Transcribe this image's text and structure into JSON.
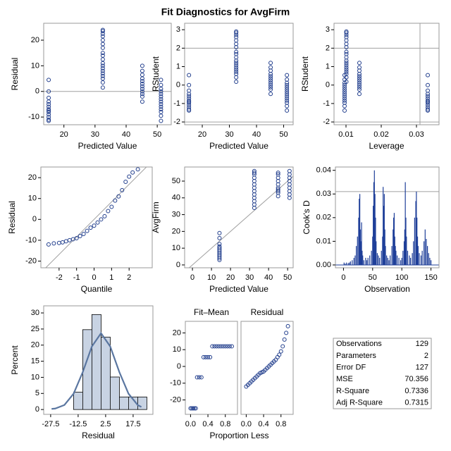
{
  "title": "Fit Diagnostics for AvgFirm",
  "chart_data": [
    {
      "type": "scatter",
      "xlabel": "Predicted Value",
      "ylabel": "Residual",
      "color": "#203d8c",
      "xlim": [
        13.5,
        54.5
      ],
      "xticks": [
        20,
        30,
        40,
        50
      ],
      "ylim": [
        -13,
        26.6
      ],
      "yticks": [
        -10,
        0,
        10,
        20
      ],
      "ref_y": [
        0
      ],
      "x": [
        15.1,
        15.1,
        15.1,
        15.1,
        15.1,
        15.1,
        15.1,
        15.1,
        15.1,
        15.1,
        15.1,
        15.1,
        15.1,
        32.5,
        32.5,
        32.5,
        32.5,
        32.5,
        32.5,
        32.5,
        32.5,
        32.5,
        32.5,
        32.5,
        32.5,
        32.5,
        32.5,
        32.5,
        32.5,
        32.5,
        32.5,
        32.5,
        45.2,
        45.2,
        45.2,
        45.2,
        45.2,
        45.2,
        45.2,
        45.2,
        45.2,
        45.2,
        45.2,
        45.2,
        51.2,
        51.2,
        51.2,
        51.2,
        51.2,
        51.2,
        51.2,
        51.2,
        51.2,
        51.2,
        51.2,
        51.2,
        51.2,
        51.2
      ],
      "y": [
        4.5,
        0,
        -2.5,
        -4,
        -5,
        -6,
        -7,
        -7.5,
        -8,
        -9,
        -10,
        -11,
        -11.5,
        24,
        23.5,
        22.5,
        21.5,
        20,
        18.5,
        17,
        15,
        14,
        12.5,
        11,
        10,
        9,
        8,
        7,
        6,
        5,
        3.5,
        1.5,
        10,
        8,
        6.5,
        5,
        4,
        3,
        2,
        1,
        0,
        -1,
        -2,
        -4,
        4.5,
        2.5,
        1,
        0,
        -1,
        -2,
        -3,
        -4,
        -5,
        -6,
        -7,
        -8,
        -9.5,
        -11.5
      ]
    },
    {
      "type": "scatter",
      "xlabel": "Predicted Value",
      "ylabel": "RStudent",
      "color": "#203d8c",
      "xlim": [
        13.5,
        53.5
      ],
      "xticks": [
        20,
        30,
        40,
        50
      ],
      "ylim": [
        -2.15,
        3.35
      ],
      "yticks": [
        -2,
        -1,
        0,
        1,
        2,
        3
      ],
      "ref_y": [
        2,
        -2
      ],
      "x": [
        15.1,
        15.1,
        15.1,
        15.1,
        15.1,
        15.1,
        15.1,
        15.1,
        15.1,
        15.1,
        15.1,
        15.1,
        15.1,
        32.5,
        32.5,
        32.5,
        32.5,
        32.5,
        32.5,
        32.5,
        32.5,
        32.5,
        32.5,
        32.5,
        32.5,
        32.5,
        32.5,
        32.5,
        32.5,
        32.5,
        32.5,
        32.5,
        45.2,
        45.2,
        45.2,
        45.2,
        45.2,
        45.2,
        45.2,
        45.2,
        45.2,
        45.2,
        45.2,
        45.2,
        51.2,
        51.2,
        51.2,
        51.2,
        51.2,
        51.2,
        51.2,
        51.2,
        51.2,
        51.2,
        51.2,
        51.2,
        51.2,
        51.2
      ],
      "y": [
        0.54,
        0,
        -0.3,
        -0.48,
        -0.6,
        -0.72,
        -0.84,
        -0.9,
        -0.96,
        -1.08,
        -1.2,
        -1.32,
        -1.38,
        2.9,
        2.84,
        2.72,
        2.6,
        2.42,
        2.23,
        2.05,
        1.8,
        1.68,
        1.5,
        1.32,
        1.2,
        1.08,
        0.96,
        0.84,
        0.72,
        0.6,
        0.42,
        0.18,
        1.2,
        0.96,
        0.78,
        0.6,
        0.48,
        0.36,
        0.24,
        0.12,
        0,
        -0.12,
        -0.24,
        -0.48,
        0.54,
        0.3,
        0.12,
        0,
        -0.12,
        -0.24,
        -0.36,
        -0.48,
        -0.6,
        -0.72,
        -0.84,
        -0.96,
        -1.14,
        -1.38
      ]
    },
    {
      "type": "scatter",
      "xlabel": "Leverage",
      "ylabel": "RStudent",
      "color": "#203d8c",
      "xlim": [
        0.0066,
        0.0364
      ],
      "xticks": [
        0.01,
        0.02,
        0.03
      ],
      "ylim": [
        -2.15,
        3.35
      ],
      "yticks": [
        -2,
        -1,
        0,
        1,
        2,
        3
      ],
      "ref_y": [
        2,
        -2
      ],
      "ref_x": [
        0.031
      ],
      "x": [
        0.0332,
        0.0332,
        0.0332,
        0.0332,
        0.0332,
        0.0332,
        0.0332,
        0.0332,
        0.0332,
        0.0332,
        0.0332,
        0.0332,
        0.0332,
        0.0101,
        0.0101,
        0.0101,
        0.0101,
        0.0101,
        0.0101,
        0.0101,
        0.0101,
        0.0101,
        0.0101,
        0.0101,
        0.0101,
        0.0101,
        0.0101,
        0.0101,
        0.0101,
        0.0101,
        0.0101,
        0.0101,
        0.0138,
        0.0138,
        0.0138,
        0.0138,
        0.0138,
        0.0138,
        0.0138,
        0.0138,
        0.0138,
        0.0138,
        0.0138,
        0.0138,
        0.0096,
        0.0096,
        0.0096,
        0.0096,
        0.0096,
        0.0096,
        0.0096,
        0.0096,
        0.0096,
        0.0096,
        0.0096,
        0.0096,
        0.0096,
        0.0096
      ],
      "y": [
        0.54,
        0,
        -0.3,
        -0.48,
        -0.6,
        -0.72,
        -0.84,
        -0.9,
        -0.96,
        -1.08,
        -1.2,
        -1.32,
        -1.38,
        2.9,
        2.84,
        2.72,
        2.6,
        2.42,
        2.23,
        2.05,
        1.8,
        1.68,
        1.5,
        1.32,
        1.2,
        1.08,
        0.96,
        0.84,
        0.72,
        0.6,
        0.42,
        0.18,
        1.2,
        0.96,
        0.78,
        0.6,
        0.48,
        0.36,
        0.24,
        0.12,
        0,
        -0.12,
        -0.24,
        -0.48,
        0.54,
        0.3,
        0.12,
        0,
        -0.12,
        -0.24,
        -0.36,
        -0.48,
        -0.6,
        -0.72,
        -0.84,
        -0.96,
        -1.14,
        -1.38
      ]
    },
    {
      "type": "scatter",
      "xlabel": "Quantile",
      "ylabel": "Residual",
      "color": "#203d8c",
      "xlim": [
        -3.04,
        3.32
      ],
      "xticks": [
        -2,
        -1,
        0,
        1,
        2
      ],
      "ylim": [
        -23.2,
        25.1
      ],
      "yticks": [
        -20,
        -10,
        0,
        10,
        20
      ],
      "reference_line": {
        "slope": 8.4,
        "intercept": 0
      },
      "x": [
        -2.6,
        -2.3,
        -2.0,
        -1.8,
        -1.6,
        -1.4,
        -1.2,
        -1.0,
        -0.8,
        -0.6,
        -0.4,
        -0.2,
        0,
        0.2,
        0.4,
        0.6,
        0.8,
        1.0,
        1.2,
        1.4,
        1.6,
        1.8,
        2.0,
        2.2,
        2.5
      ],
      "y": [
        -12,
        -11.5,
        -11.3,
        -11,
        -10.5,
        -10,
        -9.5,
        -9,
        -8,
        -7,
        -5.5,
        -4,
        -3,
        -1.5,
        0,
        1.5,
        4,
        6,
        9,
        11,
        14,
        18,
        20.5,
        22.5,
        24
      ]
    },
    {
      "type": "scatter",
      "xlabel": "Predicted Value",
      "ylabel": "AvgFirm",
      "color": "#203d8c",
      "xlim": [
        -4.1,
        52.9
      ],
      "xticks": [
        0,
        10,
        20,
        30,
        40,
        50
      ],
      "ylim": [
        -1.7,
        58.4
      ],
      "yticks": [
        0,
        10,
        20,
        30,
        40,
        50
      ],
      "reference_line": {
        "slope": 1,
        "intercept": 0
      },
      "x": [
        14.2,
        14.2,
        14.2,
        14.2,
        14.2,
        14.2,
        14.2,
        14.2,
        14.2,
        14.2,
        14.2,
        14.2,
        32.5,
        32.5,
        32.5,
        32.5,
        32.5,
        32.5,
        32.5,
        32.5,
        32.5,
        32.5,
        32.5,
        32.5,
        32.5,
        45,
        45,
        45,
        45,
        45,
        45,
        45,
        45,
        45,
        45,
        51,
        51,
        51,
        51,
        51,
        51,
        51,
        51,
        51
      ],
      "y": [
        19,
        16,
        12.5,
        11,
        10,
        9,
        8,
        7,
        6,
        5,
        4,
        3,
        56,
        55,
        54,
        52,
        50,
        48,
        46,
        44,
        42,
        40,
        38,
        36,
        34,
        55,
        54,
        52,
        50,
        48,
        46,
        45,
        44,
        43,
        41,
        56,
        54,
        52,
        50,
        48,
        46,
        44,
        42,
        40
      ]
    },
    {
      "type": "needle",
      "xlabel": "Observation",
      "ylabel": "Cook's D",
      "color": "#1f3f99",
      "xlim": [
        -13.8,
        163.8
      ],
      "xticks": [
        0,
        50,
        100,
        150
      ],
      "ylim": [
        -0.0012,
        0.0414
      ],
      "yticks": [
        {
          "value": 0,
          "label": "0.00"
        },
        0.01,
        0.02,
        0.03,
        0.04
      ],
      "ref_y": [
        0.031
      ],
      "x": [
        1,
        3,
        5,
        8,
        10,
        12,
        15,
        18,
        20,
        22,
        24,
        26,
        27,
        28,
        29,
        30,
        31,
        32,
        33,
        35,
        38,
        40,
        42,
        45,
        48,
        50,
        51,
        52,
        53,
        54,
        55,
        56,
        58,
        60,
        62,
        65,
        67,
        68,
        69,
        70,
        71,
        72,
        74,
        76,
        78,
        80,
        83,
        85,
        86,
        87,
        88,
        89,
        90,
        92,
        95,
        98,
        100,
        102,
        104,
        105,
        106,
        107,
        108,
        110,
        113,
        115,
        118,
        120,
        122,
        124,
        125,
        126,
        127,
        128,
        130,
        133,
        135,
        138,
        140,
        142,
        144,
        146,
        148,
        150
      ],
      "y": [
        0.001,
        0.0005,
        0.001,
        0.0008,
        0.001,
        0.0015,
        0.002,
        0.003,
        0.004,
        0.008,
        0.012,
        0.02,
        0.028,
        0.03,
        0.015,
        0.01,
        0.018,
        0.006,
        0.004,
        0.002,
        0.003,
        0.002,
        0.003,
        0.004,
        0.006,
        0.012,
        0.025,
        0.035,
        0.04,
        0.03,
        0.02,
        0.01,
        0.005,
        0.004,
        0.003,
        0.006,
        0.012,
        0.033,
        0.025,
        0.03,
        0.015,
        0.008,
        0.004,
        0.003,
        0.002,
        0.004,
        0.008,
        0.015,
        0.02,
        0.022,
        0.012,
        0.008,
        0.006,
        0.004,
        0.003,
        0.002,
        0.003,
        0.006,
        0.01,
        0.015,
        0.035,
        0.02,
        0.012,
        0.006,
        0.004,
        0.003,
        0.005,
        0.01,
        0.02,
        0.027,
        0.031,
        0.02,
        0.012,
        0.008,
        0.005,
        0.004,
        0.006,
        0.01,
        0.015,
        0.011,
        0.008,
        0.005,
        0.003,
        0.002
      ]
    },
    {
      "type": "histogram",
      "xlabel": "Residual",
      "ylabel": "Percent",
      "color": "#c8d3e3",
      "xlim": [
        -31.3,
        28.3
      ],
      "xticks": [
        -27.5,
        -12.5,
        2.5,
        17.5
      ],
      "ylim": [
        -1.5,
        32.2
      ],
      "yticks": [
        0,
        5,
        10,
        15,
        20,
        25,
        30
      ],
      "bins": [
        -15,
        -10,
        -5,
        0,
        5,
        10,
        15,
        20,
        25
      ],
      "values": [
        5.4,
        24.8,
        29.5,
        22.5,
        10.1,
        3.9,
        3.9,
        3.9
      ],
      "curve": {
        "color": "#5a76a0",
        "x": [
          -27,
          -25,
          -20,
          -15,
          -10,
          -5,
          0,
          5,
          10,
          15,
          20,
          22
        ],
        "y": [
          0.2,
          0.3,
          1.4,
          4.9,
          11.6,
          19.6,
          23.7,
          19.6,
          11.6,
          4.9,
          1.4,
          0.8
        ]
      }
    },
    {
      "type": "spread",
      "xlabel": "Proportion Less",
      "color": "#203d8c",
      "xlim": [
        -0.12,
        1.08
      ],
      "xticks": [
        {
          "value": 0,
          "label": "0.0"
        },
        0.4,
        0.8
      ],
      "ylim": [
        -28.6,
        26.9
      ],
      "yticks": [
        -20,
        -10,
        0,
        10,
        20
      ],
      "panels": [
        {
          "title": "Fit–Mean",
          "x": [
            0,
            0.03,
            0.06,
            0.09,
            0.12,
            0.15,
            0.2,
            0.25,
            0.3,
            0.35,
            0.4,
            0.45,
            0.5,
            0.55,
            0.6,
            0.65,
            0.7,
            0.75,
            0.8,
            0.85,
            0.9,
            0.95
          ],
          "y": [
            -25,
            -25,
            -25,
            -25,
            -25,
            -6.5,
            -6.5,
            -6.5,
            5.5,
            5.5,
            5.5,
            5.5,
            12,
            12,
            12,
            12,
            12,
            12,
            12,
            12,
            12,
            12
          ]
        },
        {
          "title": "Residual",
          "x": [
            0,
            0.04,
            0.08,
            0.12,
            0.16,
            0.2,
            0.24,
            0.28,
            0.32,
            0.36,
            0.4,
            0.44,
            0.48,
            0.52,
            0.56,
            0.6,
            0.64,
            0.68,
            0.72,
            0.76,
            0.8,
            0.84,
            0.88,
            0.92,
            0.96
          ],
          "y": [
            -12,
            -11,
            -10,
            -9,
            -8,
            -7,
            -6,
            -5,
            -4,
            -3.5,
            -3,
            -2,
            -1,
            0,
            1,
            2,
            3,
            4,
            5.5,
            7,
            9,
            12,
            16,
            20,
            24
          ]
        }
      ]
    },
    {
      "type": "table",
      "rows": [
        [
          "Observations",
          "129"
        ],
        [
          "Parameters",
          "2"
        ],
        [
          "Error DF",
          "127"
        ],
        [
          "MSE",
          "70.356"
        ],
        [
          "R-Square",
          "0.7336"
        ],
        [
          "Adj R-Square",
          "0.7315"
        ]
      ]
    }
  ]
}
